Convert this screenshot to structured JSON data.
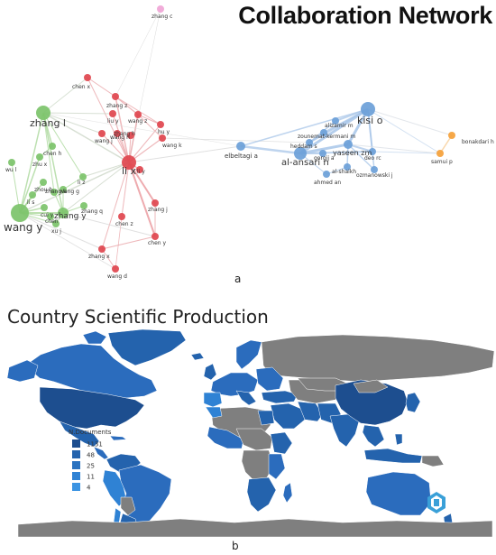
{
  "network": {
    "title": "Collaboration Network",
    "panel_label": "a",
    "clusters": [
      {
        "name": "green",
        "color": "#7cc36a"
      },
      {
        "name": "red",
        "color": "#e0454e"
      },
      {
        "name": "blue",
        "color": "#6b9fd8"
      },
      {
        "name": "orange",
        "color": "#f5a13a"
      },
      {
        "name": "pink",
        "color": "#f0a5d6"
      }
    ],
    "nodes": [
      {
        "label": "zhang c",
        "cluster": "pink",
        "size": 4
      },
      {
        "label": "chen x",
        "cluster": "red",
        "size": 4
      },
      {
        "label": "zhang z",
        "cluster": "red",
        "size": 4
      },
      {
        "label": "wang z",
        "cluster": "red",
        "size": 4
      },
      {
        "label": "liu y",
        "cluster": "red",
        "size": 4
      },
      {
        "label": "hu y",
        "cluster": "red",
        "size": 4
      },
      {
        "label": "wang j",
        "cluster": "red",
        "size": 4
      },
      {
        "label": "wang h",
        "cluster": "red",
        "size": 4
      },
      {
        "label": "zhang h",
        "cluster": "red",
        "size": 4
      },
      {
        "label": "wang k",
        "cluster": "red",
        "size": 4
      },
      {
        "label": "li x",
        "cluster": "red",
        "size": 8
      },
      {
        "label": "li y",
        "cluster": "red",
        "size": 4
      },
      {
        "label": "zhang j",
        "cluster": "red",
        "size": 4
      },
      {
        "label": "chen z",
        "cluster": "red",
        "size": 4
      },
      {
        "label": "chen y",
        "cluster": "red",
        "size": 4
      },
      {
        "label": "zhang x",
        "cluster": "red",
        "size": 4
      },
      {
        "label": "wang d",
        "cluster": "red",
        "size": 4
      },
      {
        "label": "zhang l",
        "cluster": "green",
        "size": 8
      },
      {
        "label": "chen h",
        "cluster": "green",
        "size": 4
      },
      {
        "label": "zhu x",
        "cluster": "green",
        "size": 4
      },
      {
        "label": "wu l",
        "cluster": "green",
        "size": 4
      },
      {
        "label": "li z",
        "cluster": "green",
        "size": 4
      },
      {
        "label": "zhou h",
        "cluster": "green",
        "size": 4
      },
      {
        "label": "wang g",
        "cluster": "green",
        "size": 4
      },
      {
        "label": "zhang k",
        "cluster": "green",
        "size": 4
      },
      {
        "label": "li s",
        "cluster": "green",
        "size": 4
      },
      {
        "label": "zhang q",
        "cluster": "green",
        "size": 4
      },
      {
        "label": "cui y",
        "cluster": "green",
        "size": 4
      },
      {
        "label": "zhang y",
        "cluster": "green",
        "size": 6
      },
      {
        "label": "chen",
        "cluster": "green",
        "size": 4
      },
      {
        "label": "wang y",
        "cluster": "green",
        "size": 10
      },
      {
        "label": "xu j",
        "cluster": "green",
        "size": 4
      },
      {
        "label": "kisi o",
        "cluster": "blue",
        "size": 8
      },
      {
        "label": "alizamir m",
        "cluster": "blue",
        "size": 4
      },
      {
        "label": "zounemat-kermani m",
        "cluster": "blue",
        "size": 4
      },
      {
        "label": "heddam s",
        "cluster": "blue",
        "size": 4
      },
      {
        "label": "gorgij a",
        "cluster": "blue",
        "size": 4
      },
      {
        "label": "elbeltagi a",
        "cluster": "blue",
        "size": 5
      },
      {
        "label": "al-ansari n",
        "cluster": "blue",
        "size": 7
      },
      {
        "label": "yaseen zm",
        "cluster": "blue",
        "size": 5
      },
      {
        "label": "deo rc",
        "cluster": "blue",
        "size": 4
      },
      {
        "label": "al-shaikh",
        "cluster": "blue",
        "size": 4
      },
      {
        "label": "ozmanowski j",
        "cluster": "blue",
        "size": 4
      },
      {
        "label": "ahmed an",
        "cluster": "blue",
        "size": 4
      },
      {
        "label": "samui p",
        "cluster": "orange",
        "size": 4
      },
      {
        "label": "bonakdari h",
        "cluster": "orange",
        "size": 4
      }
    ]
  },
  "map": {
    "title": "Country Scientific Production",
    "panel_label": "b",
    "legend": {
      "title": "N.Documents",
      "items": [
        {
          "label": "1131",
          "color": "#1d4e8f"
        },
        {
          "label": "48",
          "color": "#2463ad"
        },
        {
          "label": "25",
          "color": "#2a72c0"
        },
        {
          "label": "11",
          "color": "#2f82d4"
        },
        {
          "label": "4",
          "color": "#3b93e2"
        }
      ]
    },
    "colors": {
      "no_data": "#7f7f7f",
      "land_default": "#2b6cbd"
    },
    "logo_icon": "bibliometrix-logo-icon"
  }
}
